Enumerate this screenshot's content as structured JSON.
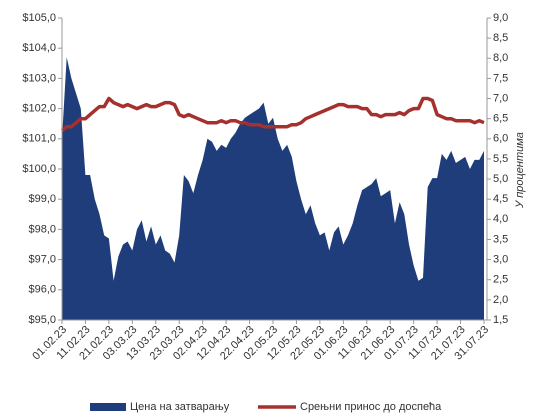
{
  "chart_data": {
    "type": "area_line",
    "categories": [
      "01.02.23",
      null,
      null,
      null,
      null,
      "11.02.23",
      null,
      null,
      null,
      null,
      "21.02.23",
      null,
      null,
      null,
      null,
      "03.03.23",
      null,
      null,
      null,
      null,
      "13.03.23",
      null,
      null,
      null,
      null,
      "23.03.23",
      null,
      null,
      null,
      null,
      "02.04.23",
      null,
      null,
      null,
      null,
      "12.04.23",
      null,
      null,
      null,
      null,
      "22.04.23",
      null,
      null,
      null,
      null,
      "02.05.23",
      null,
      null,
      null,
      null,
      "12.05.23",
      null,
      null,
      null,
      null,
      "22.05.23",
      null,
      null,
      null,
      null,
      "01.06.23",
      null,
      null,
      null,
      null,
      "11.06.23",
      null,
      null,
      null,
      null,
      "21.06.23",
      null,
      null,
      null,
      null,
      "01.07.23",
      null,
      null,
      null,
      null,
      "11.07.23",
      null,
      null,
      null,
      null,
      "21.07.23",
      null,
      null,
      null,
      null,
      "31.07.23"
    ],
    "series": [
      {
        "name": "Цена на затварању",
        "color": "#1f3d7a",
        "type": "area",
        "values": [
          101.0,
          103.7,
          103.0,
          102.5,
          102.0,
          99.8,
          99.8,
          99.0,
          98.5,
          97.8,
          97.7,
          96.3,
          97.1,
          97.5,
          97.6,
          97.3,
          98.0,
          98.3,
          97.6,
          98.1,
          97.5,
          97.8,
          97.3,
          97.2,
          96.9,
          97.8,
          99.8,
          99.6,
          99.2,
          99.8,
          100.3,
          101.0,
          100.9,
          100.6,
          100.8,
          100.7,
          101.0,
          101.2,
          101.5,
          101.7,
          101.8,
          101.9,
          102.0,
          102.2,
          101.5,
          101.7,
          101.0,
          100.6,
          100.8,
          100.4,
          99.6,
          99.0,
          98.5,
          98.8,
          98.2,
          97.8,
          97.9,
          97.3,
          97.9,
          98.1,
          97.5,
          97.8,
          98.2,
          98.8,
          99.3,
          99.4,
          99.5,
          99.7,
          99.1,
          99.2,
          99.3,
          98.2,
          98.9,
          98.5,
          97.5,
          96.8,
          96.3,
          96.4,
          99.4,
          99.7,
          99.7,
          100.5,
          100.3,
          100.6,
          100.2,
          100.3,
          100.4,
          100.0,
          100.3,
          100.3,
          100.6
        ]
      },
      {
        "name": "Срењни принос до доспећа",
        "color": "#a5302e",
        "type": "line",
        "axis": "y2",
        "values": [
          6.2,
          6.3,
          6.3,
          6.4,
          6.5,
          6.5,
          6.6,
          6.7,
          6.8,
          6.8,
          7.0,
          6.9,
          6.85,
          6.8,
          6.85,
          6.8,
          6.75,
          6.8,
          6.85,
          6.8,
          6.8,
          6.85,
          6.9,
          6.9,
          6.85,
          6.6,
          6.55,
          6.6,
          6.55,
          6.5,
          6.45,
          6.4,
          6.4,
          6.4,
          6.45,
          6.4,
          6.45,
          6.45,
          6.4,
          6.4,
          6.35,
          6.35,
          6.35,
          6.3,
          6.3,
          6.3,
          6.3,
          6.3,
          6.3,
          6.35,
          6.35,
          6.4,
          6.5,
          6.55,
          6.6,
          6.65,
          6.7,
          6.75,
          6.8,
          6.85,
          6.85,
          6.8,
          6.8,
          6.8,
          6.75,
          6.75,
          6.6,
          6.6,
          6.55,
          6.6,
          6.6,
          6.6,
          6.65,
          6.6,
          6.7,
          6.75,
          6.75,
          7.0,
          7.0,
          6.95,
          6.6,
          6.55,
          6.5,
          6.5,
          6.45,
          6.45,
          6.45,
          6.45,
          6.4,
          6.45,
          6.4
        ]
      }
    ],
    "ylim": [
      95,
      105
    ],
    "yticks": [
      {
        "value": 95,
        "label": "$95,0"
      },
      {
        "value": 96,
        "label": "$96,0"
      },
      {
        "value": 97,
        "label": "$97,0"
      },
      {
        "value": 98,
        "label": "$98,0"
      },
      {
        "value": 99,
        "label": "$99,0"
      },
      {
        "value": 100,
        "label": "$100,0"
      },
      {
        "value": 101,
        "label": "$101,0"
      },
      {
        "value": 102,
        "label": "$102,0"
      },
      {
        "value": 103,
        "label": "$103,0"
      },
      {
        "value": 104,
        "label": "$104,0"
      },
      {
        "value": 105,
        "label": "$105,0"
      }
    ],
    "y2lim": [
      1.5,
      9
    ],
    "y2ticks": [
      {
        "value": 1.5,
        "label": "1,5"
      },
      {
        "value": 2,
        "label": "2,0"
      },
      {
        "value": 2.5,
        "label": "2,5"
      },
      {
        "value": 3,
        "label": "3,0"
      },
      {
        "value": 3.5,
        "label": "3,5"
      },
      {
        "value": 4,
        "label": "4,0"
      },
      {
        "value": 4.5,
        "label": "4,5"
      },
      {
        "value": 5,
        "label": "5,0"
      },
      {
        "value": 5.5,
        "label": "5,5"
      },
      {
        "value": 6,
        "label": "6,0"
      },
      {
        "value": 6.5,
        "label": "6,5"
      },
      {
        "value": 7,
        "label": "7,0"
      },
      {
        "value": 7.5,
        "label": "7,5"
      },
      {
        "value": 8,
        "label": "8,0"
      },
      {
        "value": 8.5,
        "label": "8,5"
      },
      {
        "value": 9,
        "label": "9,0"
      }
    ],
    "y2label": "У процентима",
    "legend": "bottom"
  }
}
